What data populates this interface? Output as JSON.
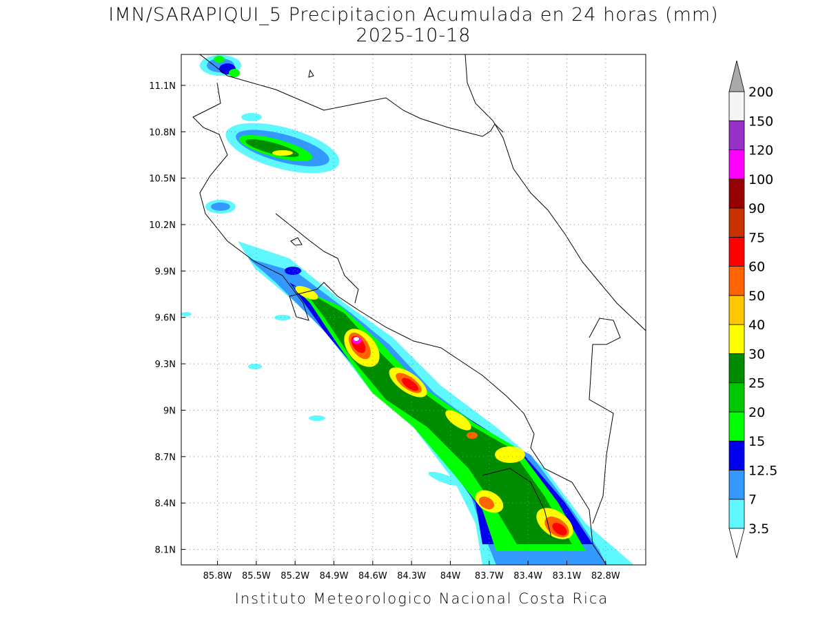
{
  "map": {
    "title": "IMN/SARAPIQUI_5 Precipitacion Acumulada en 24 horas (mm)",
    "subtitle": "2025-10-18",
    "footer": "Instituto Meteorologico Nacional Costa Rica",
    "xlim": [
      -86.08,
      -82.49
    ],
    "ylim": [
      8.0,
      11.3
    ],
    "xticks": [
      {
        "value": -85.8,
        "label": "85.8W"
      },
      {
        "value": -85.5,
        "label": "85.5W"
      },
      {
        "value": -85.2,
        "label": "85.2W"
      },
      {
        "value": -84.9,
        "label": "84.9W"
      },
      {
        "value": -84.6,
        "label": "84.6W"
      },
      {
        "value": -84.3,
        "label": "84.3W"
      },
      {
        "value": -84.0,
        "label": "84W"
      },
      {
        "value": -83.7,
        "label": "83.7W"
      },
      {
        "value": -83.4,
        "label": "83.4W"
      },
      {
        "value": -83.1,
        "label": "83.1W"
      },
      {
        "value": -82.8,
        "label": "82.8W"
      }
    ],
    "yticks": [
      {
        "value": 8.1,
        "label": "8.1N"
      },
      {
        "value": 8.4,
        "label": "8.4N"
      },
      {
        "value": 8.7,
        "label": "8.7N"
      },
      {
        "value": 9.0,
        "label": "9N"
      },
      {
        "value": 9.3,
        "label": "9.3N"
      },
      {
        "value": 9.6,
        "label": "9.6N"
      },
      {
        "value": 9.9,
        "label": "9.9N"
      },
      {
        "value": 10.2,
        "label": "10.2N"
      },
      {
        "value": 10.5,
        "label": "10.5N"
      },
      {
        "value": 10.8,
        "label": "10.8N"
      },
      {
        "value": 11.1,
        "label": "11.1N"
      }
    ],
    "grid": true,
    "colorbar": {
      "levels": [
        3.5,
        7,
        12.5,
        15,
        20,
        25,
        30,
        40,
        50,
        60,
        75,
        90,
        100,
        120,
        150,
        200
      ],
      "colors": [
        "#5ff8ff",
        "#3399ff",
        "#0000ee",
        "#00ff00",
        "#00c800",
        "#008c00",
        "#ffff00",
        "#ffc800",
        "#ff6400",
        "#ff0000",
        "#c83200",
        "#960000",
        "#ff00ff",
        "#9632c8",
        "#f5f5f5"
      ],
      "under_color": "#ffffff",
      "over_color": "#aaaaaa"
    }
  }
}
